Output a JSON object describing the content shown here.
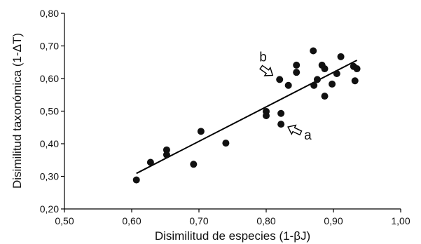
{
  "chart_data": {
    "type": "scatter",
    "xlabel": "Disimilitud de especies (1-βJ)",
    "ylabel": "Disimilitud taxonómica (1-ΔT)",
    "xlim": [
      0.5,
      1.0
    ],
    "ylim": [
      0.2,
      0.8
    ],
    "xticks": [
      "0,50",
      "0,60",
      "0,70",
      "0,80",
      "0,90",
      "1,00"
    ],
    "yticks": [
      "0,20",
      "0,30",
      "0,40",
      "0,50",
      "0,60",
      "0,70",
      "0,80"
    ],
    "grid": false,
    "points": [
      {
        "x": 0.607,
        "y": 0.289
      },
      {
        "x": 0.628,
        "y": 0.343
      },
      {
        "x": 0.652,
        "y": 0.381
      },
      {
        "x": 0.652,
        "y": 0.366
      },
      {
        "x": 0.692,
        "y": 0.337
      },
      {
        "x": 0.703,
        "y": 0.438
      },
      {
        "x": 0.74,
        "y": 0.402
      },
      {
        "x": 0.8,
        "y": 0.499
      },
      {
        "x": 0.8,
        "y": 0.486
      },
      {
        "x": 0.822,
        "y": 0.493
      },
      {
        "x": 0.822,
        "y": 0.46
      },
      {
        "x": 0.82,
        "y": 0.597
      },
      {
        "x": 0.833,
        "y": 0.579
      },
      {
        "x": 0.845,
        "y": 0.641
      },
      {
        "x": 0.845,
        "y": 0.619
      },
      {
        "x": 0.87,
        "y": 0.685
      },
      {
        "x": 0.871,
        "y": 0.579
      },
      {
        "x": 0.876,
        "y": 0.597
      },
      {
        "x": 0.883,
        "y": 0.641
      },
      {
        "x": 0.887,
        "y": 0.63
      },
      {
        "x": 0.887,
        "y": 0.546
      },
      {
        "x": 0.898,
        "y": 0.583
      },
      {
        "x": 0.905,
        "y": 0.615
      },
      {
        "x": 0.911,
        "y": 0.667
      },
      {
        "x": 0.93,
        "y": 0.637
      },
      {
        "x": 0.932,
        "y": 0.593
      },
      {
        "x": 0.935,
        "y": 0.63
      }
    ],
    "trendline": {
      "x": [
        0.607,
        0.935
      ],
      "y": [
        0.309,
        0.656
      ]
    },
    "annotations": [
      {
        "text": "a",
        "x": 0.822,
        "y": 0.46
      },
      {
        "text": "b",
        "x": 0.82,
        "y": 0.597
      }
    ]
  }
}
